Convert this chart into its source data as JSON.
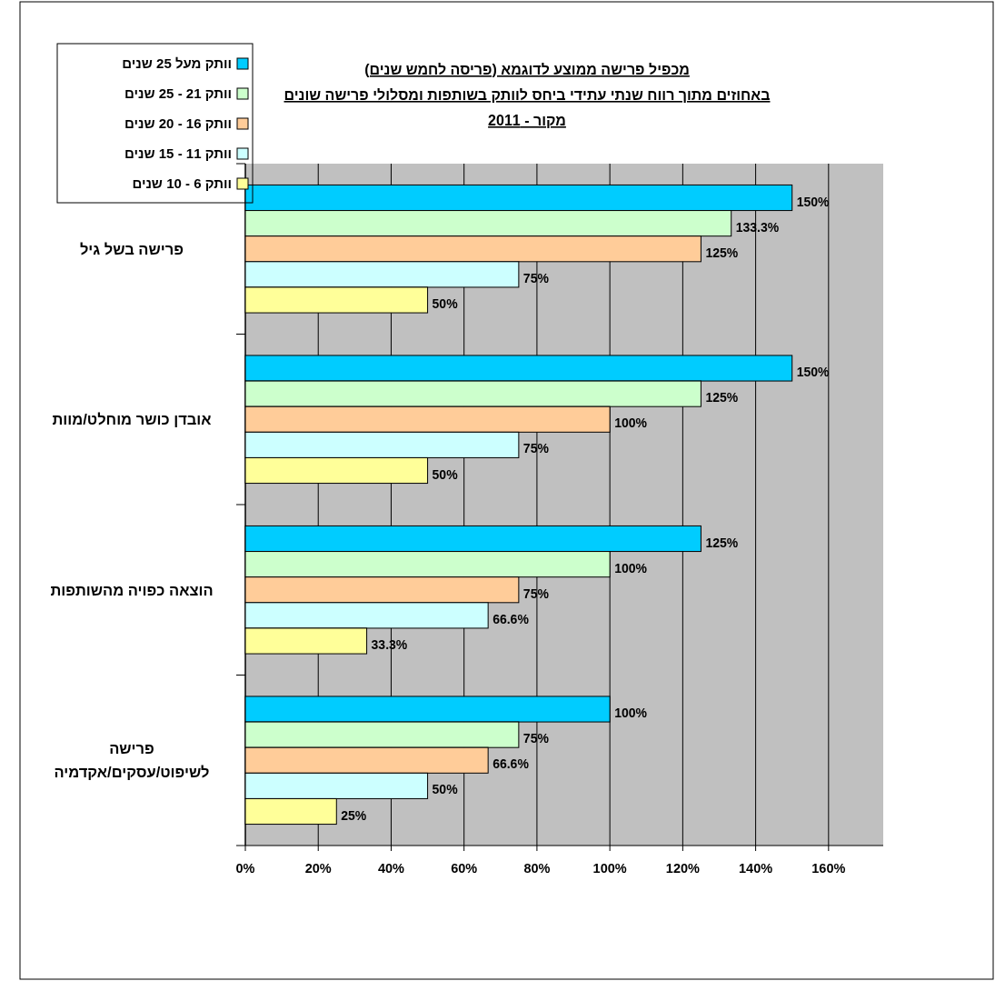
{
  "chart_data": {
    "type": "bar",
    "orientation": "horizontal",
    "title": "מכפיל פרישה ממוצע לדוגמא (פריסה לחמש שנים)",
    "subtitle": "באחוזים מתוך רווח שנתי עתידי ביחס לוותק בשותפות ומסלולי פרישה שונים",
    "annotations": [
      "מקור - 2011"
    ],
    "categories": [
      "פרישה בשל גיל",
      "אובדן כושר מוחלט/מוות",
      "הוצאה כפויה מהשותפות",
      "פרישה לשיפוט/עסקים/אקדמיה"
    ],
    "series": [
      {
        "name": "וותק מעל 25 שנים",
        "color": "#00ccff",
        "values": [
          150,
          150,
          125,
          100
        ],
        "value_labels": [
          "150%",
          "150%",
          "125%",
          "100%"
        ]
      },
      {
        "name": "וותק 21 - 25 שנים",
        "color": "#ccffcc",
        "values": [
          133.3,
          125,
          100,
          75
        ],
        "value_labels": [
          "133.3%",
          "125%",
          "100%",
          "75%"
        ]
      },
      {
        "name": "וותק 16 - 20 שנים",
        "color": "#ffcc99",
        "values": [
          125,
          100,
          75,
          66.6
        ],
        "value_labels": [
          "125%",
          "100%",
          "75%",
          "66.6%"
        ]
      },
      {
        "name": "וותק 11 - 15 שנים",
        "color": "#ccffff",
        "values": [
          75,
          75,
          66.6,
          50
        ],
        "value_labels": [
          "75%",
          "75%",
          "66.6%",
          "50%"
        ]
      },
      {
        "name": "וותק 6 - 10 שנים",
        "color": "#ffff99",
        "values": [
          50,
          50,
          33.3,
          25
        ],
        "value_labels": [
          "50%",
          "50%",
          "33.3%",
          "25%"
        ]
      }
    ],
    "xlim": [
      0,
      175
    ],
    "xticks": [
      {
        "value": 0,
        "label": "0%"
      },
      {
        "value": 20,
        "label": "20%"
      },
      {
        "value": 40,
        "label": "40%"
      },
      {
        "value": 60,
        "label": "60%"
      },
      {
        "value": 80,
        "label": "80%"
      },
      {
        "value": 100,
        "label": "100%"
      },
      {
        "value": 120,
        "label": "120%"
      },
      {
        "value": 140,
        "label": "140%"
      },
      {
        "value": 160,
        "label": "160%"
      }
    ],
    "grid": "x",
    "legend": "top left"
  }
}
